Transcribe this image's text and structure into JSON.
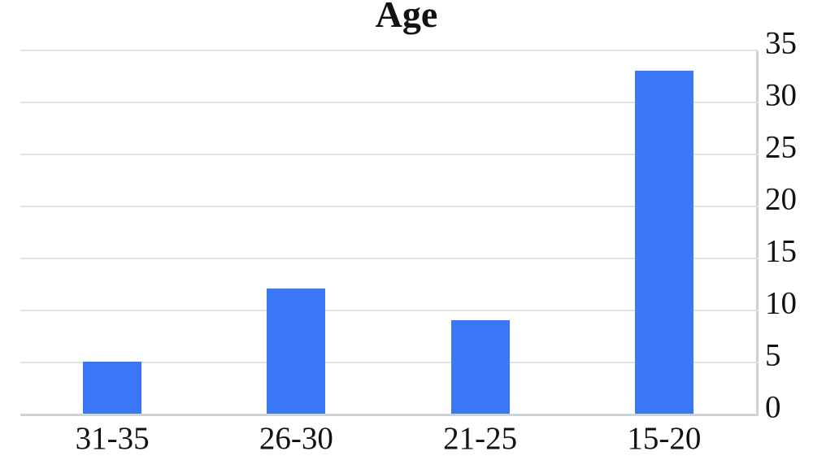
{
  "chart_data": {
    "type": "bar",
    "title": "Age",
    "categories": [
      "31-35",
      "26-30",
      "21-25",
      "15-20"
    ],
    "values": [
      5,
      12,
      9,
      33
    ],
    "xlabel": "",
    "ylabel": "",
    "ylim": [
      0,
      35
    ],
    "yticks": [
      0,
      5,
      10,
      15,
      20,
      25,
      30,
      35
    ],
    "yaxis_side": "right",
    "grid": true,
    "legend": "none",
    "bar_color": "#3a77f7",
    "gridline_color": "#dde6e2",
    "axis_color": "#ccd5d2",
    "text_color": "#121212",
    "background_color": "#ffffff"
  }
}
